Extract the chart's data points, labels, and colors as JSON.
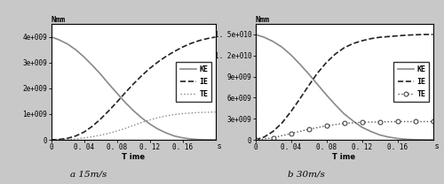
{
  "fig_width": 5.0,
  "fig_height": 2.08,
  "dpi": 100,
  "bg_color": "#c8c8c8",
  "plot_bg_color": "#ffffff",
  "left": {
    "title": "Nmm",
    "xlabel": "T ime",
    "xlabel_suffix": "s",
    "xlim": [
      0,
      0.2
    ],
    "ylim": [
      0,
      4500000000.0
    ],
    "yticks": [
      0,
      1000000000.0,
      2000000000.0,
      3000000000.0,
      4000000000.0
    ],
    "ytick_labels": [
      "0",
      "1e+009",
      "2e+009",
      "3e+009",
      "4e+009"
    ],
    "xticks": [
      0,
      0.04,
      0.08,
      0.12,
      0.16
    ],
    "xtick_labels": [
      "0",
      "0. 04",
      "0. 08",
      "0. 12",
      "0. 16"
    ],
    "caption": "a 15m/s",
    "KE": {
      "x": [
        0,
        0.01,
        0.02,
        0.03,
        0.04,
        0.05,
        0.06,
        0.07,
        0.08,
        0.09,
        0.1,
        0.11,
        0.12,
        0.13,
        0.14,
        0.15,
        0.16,
        0.17,
        0.18,
        0.19,
        0.2
      ],
      "y": [
        4000000000.0,
        3880000000.0,
        3720000000.0,
        3500000000.0,
        3220000000.0,
        2900000000.0,
        2560000000.0,
        2180000000.0,
        1820000000.0,
        1460000000.0,
        1140000000.0,
        860000000.0,
        620000000.0,
        420000000.0,
        270000000.0,
        150000000.0,
        80000000.0,
        35000000.0,
        12000000.0,
        4000000.0,
        1000000.0
      ],
      "style": "-",
      "color": "#888888",
      "lw": 1.2
    },
    "IE": {
      "x": [
        0,
        0.01,
        0.02,
        0.03,
        0.04,
        0.05,
        0.06,
        0.07,
        0.08,
        0.09,
        0.1,
        0.11,
        0.12,
        0.13,
        0.14,
        0.15,
        0.16,
        0.17,
        0.18,
        0.19,
        0.2
      ],
      "y": [
        0,
        20000000.0,
        60000000.0,
        150000000.0,
        300000000.0,
        520000000.0,
        800000000.0,
        1120000000.0,
        1460000000.0,
        1820000000.0,
        2160000000.0,
        2480000000.0,
        2770000000.0,
        3020000000.0,
        3240000000.0,
        3430000000.0,
        3600000000.0,
        3740000000.0,
        3850000000.0,
        3930000000.0,
        3990000000.0
      ],
      "style": "--",
      "color": "#222222",
      "lw": 1.2
    },
    "TE": {
      "x": [
        0,
        0.01,
        0.02,
        0.03,
        0.04,
        0.05,
        0.06,
        0.07,
        0.08,
        0.09,
        0.1,
        0.11,
        0.12,
        0.13,
        0.14,
        0.15,
        0.16,
        0.17,
        0.18,
        0.19,
        0.2
      ],
      "y": [
        0,
        5000000.0,
        18000000.0,
        40000000.0,
        75000000.0,
        120000000.0,
        180000000.0,
        250000000.0,
        340000000.0,
        440000000.0,
        560000000.0,
        670000000.0,
        770000000.0,
        860000000.0,
        930000000.0,
        980000000.0,
        1020000000.0,
        1040000000.0,
        1060000000.0,
        1070000000.0,
        1080000000.0
      ],
      "style": ":",
      "color": "#888888",
      "lw": 1.0
    }
  },
  "right": {
    "title": "Nmm",
    "xlabel": "T ime",
    "xlabel_suffix": "s",
    "xlim": [
      0,
      0.2
    ],
    "ylim": [
      0,
      16500000000.0
    ],
    "yticks": [
      0,
      3000000000.0,
      6000000000.0,
      9000000000.0,
      12000000000.0,
      15000000000.0
    ],
    "ytick_labels": [
      "0",
      "3e+009",
      "6e+009",
      "9e+009",
      "1. 2e+010",
      "1. 5e+010"
    ],
    "xticks": [
      0,
      0.04,
      0.08,
      0.12,
      0.16
    ],
    "xtick_labels": [
      "0",
      "0. 04",
      "0. 08",
      "0. 12",
      "0. 16"
    ],
    "caption": "b 30m/s",
    "KE": {
      "x": [
        0,
        0.01,
        0.02,
        0.03,
        0.04,
        0.05,
        0.06,
        0.07,
        0.08,
        0.09,
        0.1,
        0.11,
        0.12,
        0.13,
        0.14,
        0.15,
        0.16,
        0.17,
        0.18,
        0.19,
        0.2
      ],
      "y": [
        15000000000.0,
        14600000000.0,
        14000000000.0,
        13200000000.0,
        12100000000.0,
        10800000000.0,
        9400000000.0,
        7900000000.0,
        6400000000.0,
        5000000000.0,
        3700000000.0,
        2700000000.0,
        1800000000.0,
        1200000000.0,
        700000000.0,
        400000000.0,
        200000000.0,
        80000000.0,
        30000000.0,
        10000000.0,
        3000000.0
      ],
      "style": "-",
      "color": "#888888",
      "lw": 1.2
    },
    "IE": {
      "x": [
        0,
        0.01,
        0.02,
        0.03,
        0.04,
        0.05,
        0.06,
        0.07,
        0.08,
        0.09,
        0.1,
        0.11,
        0.12,
        0.13,
        0.14,
        0.15,
        0.16,
        0.17,
        0.18,
        0.19,
        0.2
      ],
      "y": [
        0,
        400000000.0,
        1200000000.0,
        2400000000.0,
        4000000000.0,
        5800000000.0,
        7700000000.0,
        9500000000.0,
        11000000000.0,
        12200000000.0,
        13100000000.0,
        13700000000.0,
        14100000000.0,
        14400000000.0,
        14600000000.0,
        14700000000.0,
        14800000000.0,
        14900000000.0,
        14950000000.0,
        15000000000.0,
        15000000000.0
      ],
      "style": "--",
      "color": "#222222",
      "lw": 1.2
    },
    "TE": {
      "x": [
        0,
        0.02,
        0.04,
        0.06,
        0.08,
        0.1,
        0.12,
        0.14,
        0.16,
        0.18,
        0.2
      ],
      "y": [
        0,
        300000000.0,
        900000000.0,
        1500000000.0,
        2000000000.0,
        2350000000.0,
        2500000000.0,
        2550000000.0,
        2600000000.0,
        2600000000.0,
        2600000000.0
      ],
      "style": ":",
      "color": "#555555",
      "lw": 1.0,
      "marker": "o",
      "ms": 3.5,
      "markerfacecolor": "white",
      "markeredgecolor": "#444444",
      "markeredgewidth": 0.8
    }
  },
  "legend_fontsize": 6.0,
  "tick_fontsize": 5.5,
  "label_fontsize": 6.0,
  "title_fontsize": 6.5,
  "caption_fontsize": 7.5
}
